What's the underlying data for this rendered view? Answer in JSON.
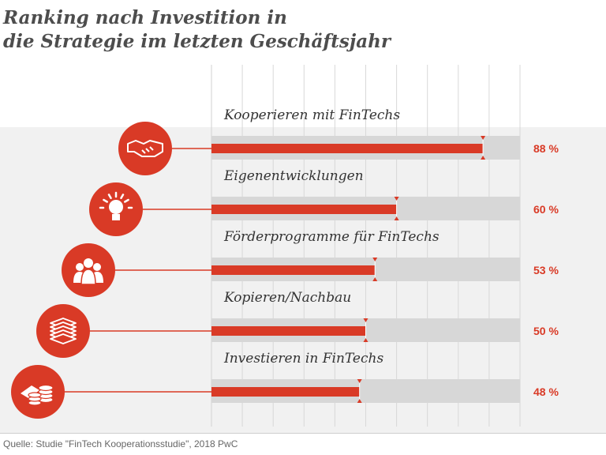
{
  "title_line1": "Ranking nach Investition in",
  "title_line2": "die Strategie im letzten Geschäftsjahr",
  "source": "Quelle: Studie \"FinTech Kooperationsstudie\", 2018 PwC",
  "colors": {
    "accent": "#d93a26",
    "track": "#d7d7d7",
    "band": "#f1f1f1"
  },
  "chart_data": {
    "type": "bar",
    "orientation": "horizontal",
    "categories": [
      "Kooperieren mit FinTechs",
      "Eigenentwicklungen",
      "Förderprogramme für FinTechs",
      "Kopieren/Nachbau",
      "Investieren in FinTechs"
    ],
    "values": [
      88,
      60,
      53,
      50,
      48
    ],
    "value_labels": [
      "88 %",
      "60 %",
      "53 %",
      "50 %",
      "48 %"
    ],
    "icons": [
      "handshake-icon",
      "lightbulb-icon",
      "people-icon",
      "stack-icon",
      "coins-icon"
    ],
    "xlim": [
      0,
      100
    ],
    "grid": true,
    "unit": "%"
  }
}
